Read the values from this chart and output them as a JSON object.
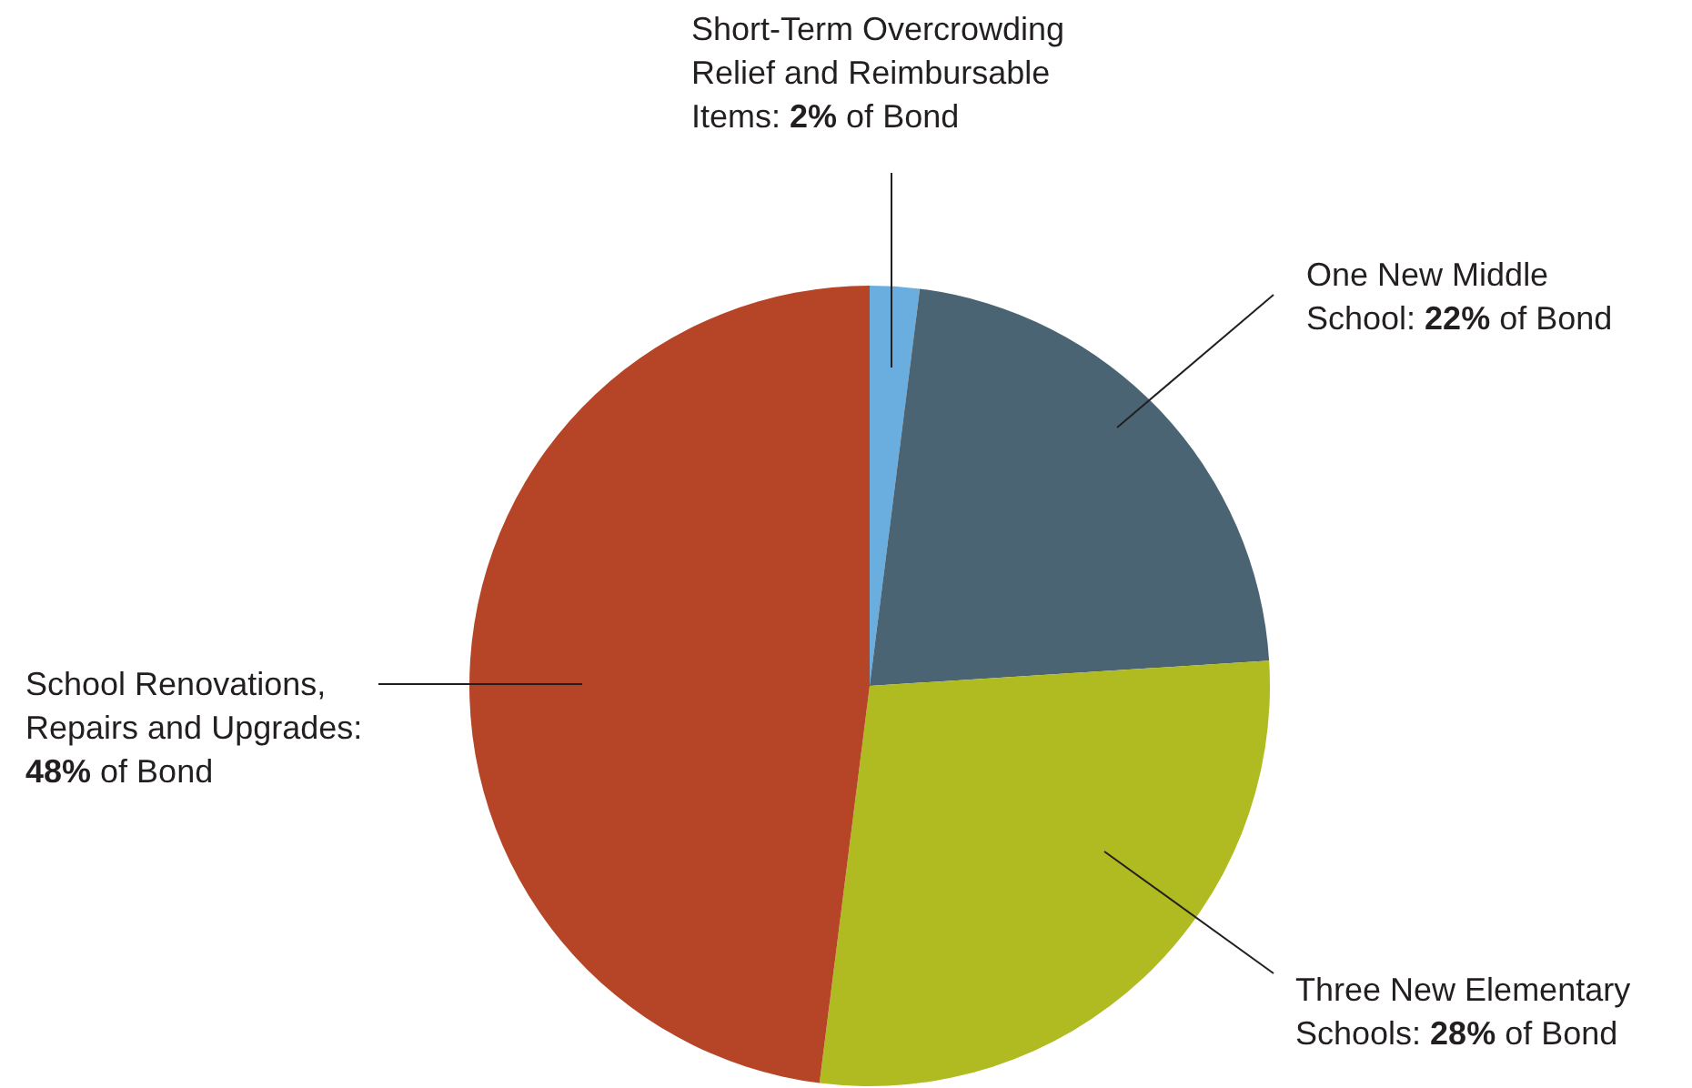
{
  "chart_data": {
    "type": "pie",
    "categories": [
      "Short-Term Overcrowding Relief and Reimbursable Items",
      "One New Middle School",
      "Three New Elementary Schools",
      "School Renovations, Repairs and Upgrades"
    ],
    "values": [
      2,
      22,
      28,
      48
    ],
    "value_labels": [
      ": 2% of Bond",
      ": 22% of Bond",
      ": 28% of Bond",
      ": 48% of Bond"
    ],
    "colors": [
      "#6aaee0",
      "#4b6474",
      "#b0bb22",
      "#b54526"
    ]
  }
}
